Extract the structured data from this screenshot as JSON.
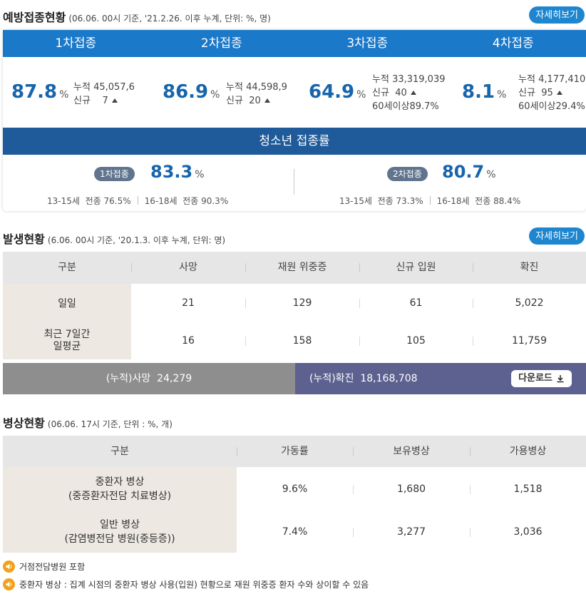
{
  "vaccination": {
    "title": "예방접종현황",
    "note": "(06.06. 00시 기준, '21.2.26. 이후 누계, 단위: %, 명)",
    "detail_label": "자세히보기",
    "pct_unit": "%",
    "doses": [
      {
        "label": "1차접종",
        "pct": "87.8",
        "cum_label": "누적",
        "cum_value": "45,057,6",
        "new_label": "신규",
        "new_value": "7"
      },
      {
        "label": "2차접종",
        "pct": "86.9",
        "cum_label": "누적",
        "cum_value": "44,598,9",
        "new_label": "신규",
        "new_value": "20"
      },
      {
        "label": "3차접종",
        "pct": "64.9",
        "cum_label": "누적",
        "cum_value": "33,319,039",
        "new_label": "신규",
        "new_value": "40",
        "age_label": "60세이상",
        "age_value": "89.7%"
      },
      {
        "label": "4차접종",
        "pct": "8.1",
        "cum_label": "누적",
        "cum_value": "4,177,410",
        "new_label": "신규",
        "new_value": "95",
        "age_label": "60세이상",
        "age_value": "29.4%"
      }
    ],
    "teen": {
      "title": "청소년 접종률",
      "items": [
        {
          "badge": "1차접종",
          "pct": "83.3",
          "g1_age": "13-15세",
          "g1_label": "전종",
          "g1_value": "76.5%",
          "g2_age": "16-18세",
          "g2_label": "전종",
          "g2_value": "90.3%"
        },
        {
          "badge": "2차접종",
          "pct": "80.7",
          "g1_age": "13-15세",
          "g1_label": "전종",
          "g1_value": "73.3%",
          "g2_age": "16-18세",
          "g2_label": "전종",
          "g2_value": "88.4%"
        }
      ]
    }
  },
  "occurrence": {
    "title": "발생현황",
    "note": "(6.06. 00시 기준, '20.1.3. 이후 누계, 단위: 명)",
    "detail_label": "자세히보기",
    "headers": [
      "구분",
      "사망",
      "재원 위중증",
      "신규 입원",
      "확진"
    ],
    "rows": [
      {
        "label": "일일",
        "values": [
          "21",
          "129",
          "61",
          "5,022"
        ]
      },
      {
        "label_line1": "최근 7일간",
        "label_line2": "일평균",
        "values": [
          "16",
          "158",
          "105",
          "11,759"
        ]
      }
    ],
    "cumulative": {
      "death_label": "(누적)사망",
      "death_value": "24,279",
      "confirmed_label": "(누적)확진",
      "confirmed_value": "18,168,708",
      "download_label": "다운로드"
    }
  },
  "beds": {
    "title": "병상현황",
    "note": "(06.06. 17시 기준, 단위 : %, 개)",
    "headers": [
      "구분",
      "가동률",
      "보유병상",
      "가용병상"
    ],
    "rows": [
      {
        "label_line1": "중환자 병상",
        "label_line2": "(중증환자전담 치료병상)",
        "values": [
          "9.6%",
          "1,680",
          "1,518"
        ]
      },
      {
        "label_line1": "일반 병상",
        "label_line2": "(감염병전담 병원(중등증))",
        "values": [
          "7.4%",
          "3,277",
          "3,036"
        ]
      }
    ]
  },
  "notes": [
    "거점전담병원 포함",
    "중환자 병상 : 집계 시점의 중환자 병상 사용(입원) 현황으로 재원 위중증 환자 수와 상이할 수 있음"
  ],
  "icons": {
    "speaker": "speaker-icon",
    "up_triangle": "triangle-up-icon",
    "download": "download-icon"
  },
  "colors": {
    "primary_blue": "#1b79c9",
    "teen_bar": "#1f5b9a",
    "value_blue": "#1765ad",
    "badge": "#60748d",
    "cum_gray": "#8e8e8e",
    "cum_navy": "#5c6190",
    "note_orange": "#f0a21e"
  }
}
